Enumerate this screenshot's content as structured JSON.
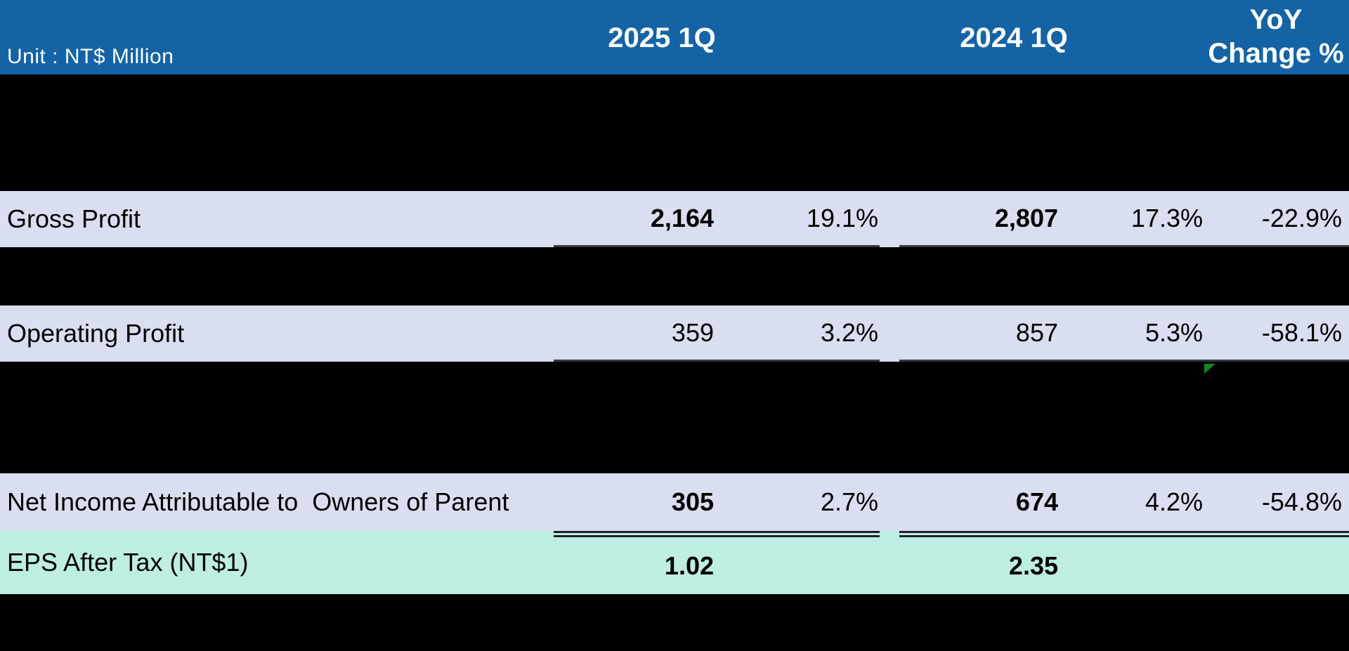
{
  "unit_label": "Unit : NT$ Million",
  "header": {
    "col_2025": "2025 1Q",
    "col_2024": "2024 1Q",
    "yoy_line1": "YoY",
    "yoy_line2": "Change %"
  },
  "rows": [
    {
      "label": "Gross Profit",
      "v2025": "2,164",
      "p2025": "19.1%",
      "v2024": "2,807",
      "p2024": "17.3%",
      "yoy": "-22.9%"
    },
    {
      "label": "Operating Profit",
      "v2025": "359",
      "p2025": "3.2%",
      "v2024": "857",
      "p2024": "5.3%",
      "yoy": "-58.1%"
    },
    {
      "label": "Net Income Attributable to  Owners of Parent",
      "v2025": "305",
      "p2025": "2.7%",
      "v2024": "674",
      "p2024": "4.2%",
      "yoy": "-54.8%"
    },
    {
      "label": "EPS After Tax (NT$1)",
      "v2025": "1.02",
      "p2025": "",
      "v2024": "2.35",
      "p2024": "",
      "yoy": ""
    }
  ],
  "indicator": {
    "name": "green-triangle-marker"
  },
  "colors": {
    "header_bg": "#1463A5",
    "header_text": "#FFFFFF",
    "row_bg": "#DADEF1",
    "eps_row_bg": "#BEEDE4",
    "page_bg": "#000000",
    "row_text": "#000000",
    "underline": "#383844",
    "indicator_green": "#168424"
  }
}
